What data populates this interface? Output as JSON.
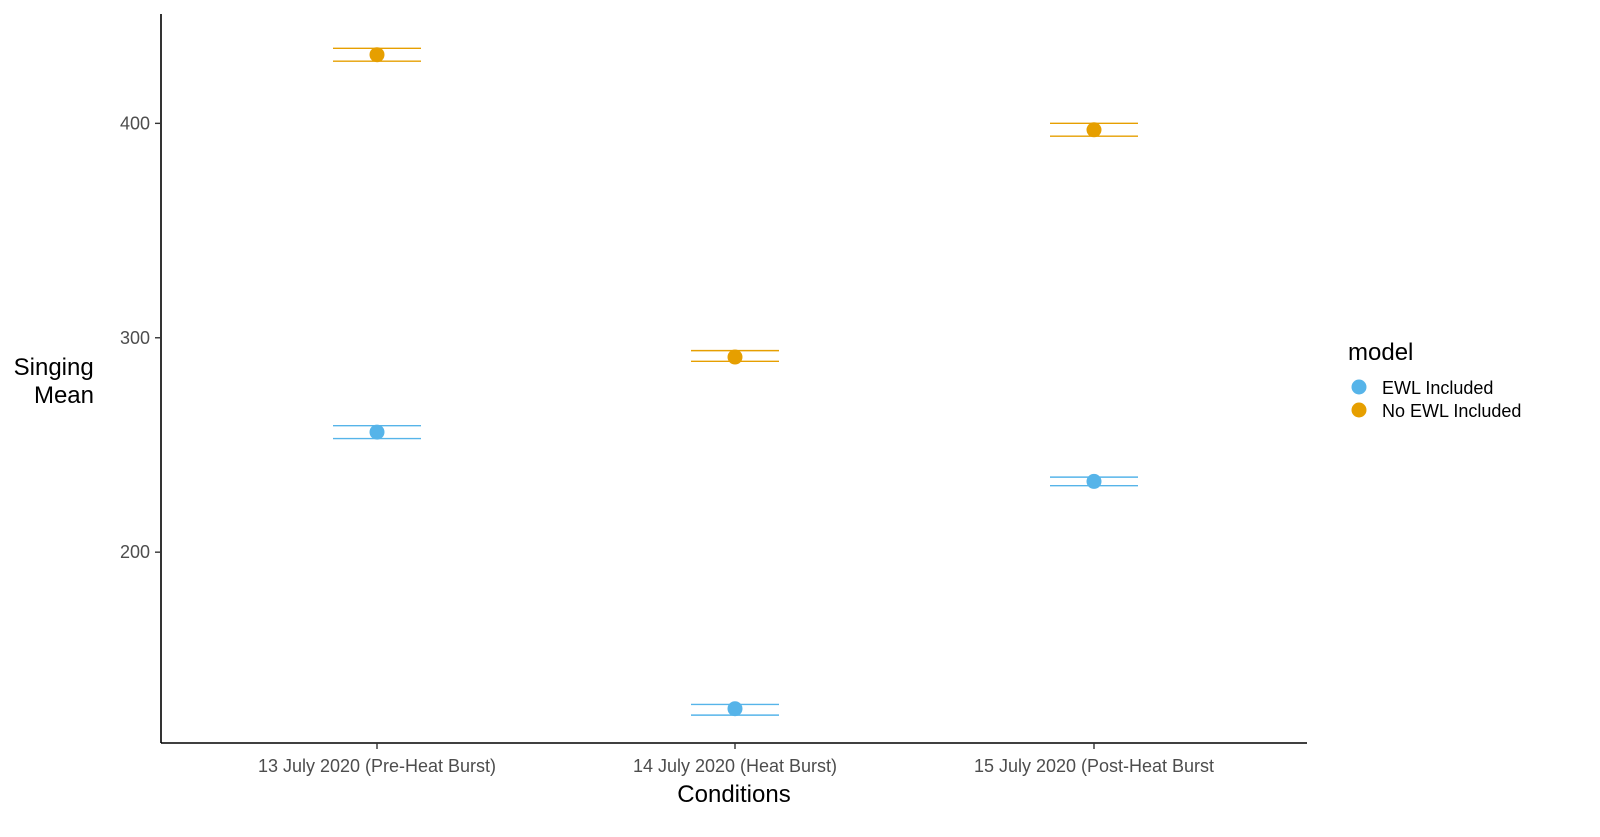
{
  "chart_data": {
    "type": "scatter",
    "x_categories": [
      "13 July 2020 (Pre-Heat Burst)",
      "14 July 2020 (Heat Burst)",
      "15 July 2020 (Post-Heat Burst"
    ],
    "xlabel": "Conditions",
    "ylabel_lines": [
      "Singing",
      "Mean"
    ],
    "y_ticks": [
      200,
      300,
      400
    ],
    "ylim": [
      111,
      451
    ],
    "grid": false,
    "legend": {
      "title": "model",
      "position": "right"
    },
    "series": [
      {
        "name": "EWL Included",
        "color": "#56B4E9",
        "values": [
          256,
          127,
          233
        ],
        "error_low": [
          253,
          124,
          231
        ],
        "error_high": [
          259,
          129,
          235
        ]
      },
      {
        "name": "No EWL Included",
        "color": "#E69F00",
        "values": [
          432,
          291,
          397
        ],
        "error_low": [
          429,
          289,
          394
        ],
        "error_high": [
          435,
          294,
          400
        ]
      }
    ]
  }
}
